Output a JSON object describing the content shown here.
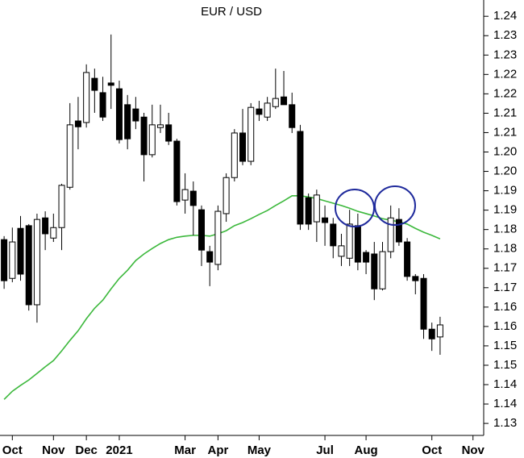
{
  "chart_data": {
    "type": "candlestick",
    "title": "EUR / USD",
    "x": [
      0,
      1,
      2,
      3,
      4,
      5,
      6,
      7,
      8,
      9,
      10,
      11,
      12,
      13,
      14,
      15,
      16,
      17,
      18,
      19,
      20,
      21,
      22,
      23,
      24,
      25,
      26,
      27,
      28,
      29,
      30,
      31,
      32,
      33,
      34,
      35,
      36,
      37,
      38,
      39,
      40,
      41,
      42,
      43,
      44,
      45,
      46,
      47,
      48,
      49,
      50,
      51,
      52,
      53
    ],
    "open": [
      1.1824,
      1.1724,
      1.1853,
      1.186,
      1.1656,
      1.188,
      1.1828,
      1.1855,
      1.1959,
      1.213,
      1.2126,
      1.224,
      1.2203,
      1.2228,
      1.2213,
      1.2172,
      1.2161,
      1.214,
      1.2043,
      1.2113,
      1.212,
      1.2078,
      1.1926,
      1.1949,
      1.1901,
      1.1793,
      1.176,
      1.1891,
      1.1984,
      1.2099,
      1.2026,
      1.2161,
      1.214,
      1.2167,
      1.2192,
      1.2172,
      1.2103,
      1.1932,
      1.187,
      1.188,
      1.1864,
      1.1781,
      1.1776,
      1.186,
      1.1791,
      1.1787,
      1.1697,
      1.1793,
      1.1876,
      1.1818,
      1.1729,
      1.1724,
      1.1593,
      1.1573
    ],
    "high": [
      1.1833,
      1.1855,
      1.1885,
      1.1864,
      1.1891,
      1.1897,
      1.1891,
      1.1968,
      1.2176,
      1.2192,
      1.2276,
      1.2265,
      1.2244,
      1.2353,
      1.2234,
      1.2197,
      1.2192,
      1.2151,
      1.2172,
      1.2172,
      1.2151,
      1.2084,
      1.1995,
      1.1974,
      1.1912,
      1.1808,
      1.1912,
      1.1995,
      1.2109,
      1.2161,
      1.2176,
      1.2182,
      1.2192,
      1.2265,
      1.2259,
      1.2203,
      1.212,
      1.1943,
      1.1953,
      1.1912,
      1.188,
      1.1839,
      1.1901,
      1.1891,
      1.1797,
      1.1818,
      1.1818,
      1.1912,
      1.1905,
      1.1828,
      1.1735,
      1.1735,
      1.161,
      1.1625
    ],
    "low": [
      1.1697,
      1.1714,
      1.1718,
      1.1641,
      1.161,
      1.1797,
      1.1818,
      1.1797,
      1.1953,
      1.2057,
      1.2113,
      1.2151,
      1.213,
      1.2161,
      1.2072,
      1.2057,
      1.2109,
      1.1974,
      1.2036,
      1.2099,
      1.2068,
      1.1912,
      1.1891,
      1.1835,
      1.1756,
      1.1704,
      1.1745,
      1.187,
      1.1974,
      1.2016,
      1.2016,
      1.213,
      1.213,
      1.2161,
      1.2172,
      1.2099,
      1.1849,
      1.1849,
      1.1818,
      1.1808,
      1.1776,
      1.1756,
      1.1756,
      1.1745,
      1.1735,
      1.1668,
      1.1693,
      1.1776,
      1.1808,
      1.1718,
      1.1683,
      1.1568,
      1.1537,
      1.1527
    ],
    "close": [
      1.1718,
      1.1818,
      1.1735,
      1.1656,
      1.1876,
      1.1839,
      1.1855,
      1.1964,
      1.212,
      1.2115,
      1.2255,
      1.2209,
      1.214,
      1.2222,
      1.2082,
      1.2084,
      1.213,
      1.2043,
      1.212,
      1.212,
      1.2078,
      1.1922,
      1.1953,
      1.1912,
      1.1797,
      1.1766,
      1.1897,
      1.1984,
      1.2099,
      1.2026,
      1.2165,
      1.2147,
      1.2176,
      1.2188,
      1.2172,
      1.2113,
      1.1864,
      1.1864,
      1.1939,
      1.1868,
      1.1808,
      1.1808,
      1.1864,
      1.1766,
      1.1766,
      1.1697,
      1.1793,
      1.188,
      1.1818,
      1.1729,
      1.1718,
      1.1593,
      1.1568,
      1.1604
    ],
    "up_color": "#ffffff",
    "down_color": "#000000",
    "line": {
      "color": "#3cb83c",
      "values": [
        1.1412,
        1.1433,
        1.1448,
        1.1462,
        1.1479,
        1.1496,
        1.1512,
        1.1537,
        1.1564,
        1.1589,
        1.162,
        1.1647,
        1.1668,
        1.1697,
        1.1724,
        1.1745,
        1.177,
        1.1787,
        1.1801,
        1.1814,
        1.1824,
        1.183,
        1.1833,
        1.1835,
        1.1835,
        1.1833,
        1.1839,
        1.1847,
        1.186,
        1.1868,
        1.1878,
        1.1889,
        1.1899,
        1.1912,
        1.1924,
        1.1937,
        1.1937,
        1.1934,
        1.193,
        1.1924,
        1.1918,
        1.1912,
        1.1905,
        1.1897,
        1.1891,
        1.1885,
        1.1878,
        1.1874,
        1.187,
        1.1864,
        1.1853,
        1.1843,
        1.1835,
        1.1826
      ]
    },
    "xlim": [
      -0.5,
      58.3
    ],
    "xticks": [
      {
        "value": 1,
        "label": "Oct"
      },
      {
        "value": 6,
        "label": "Nov"
      },
      {
        "value": 10,
        "label": "Dec"
      },
      {
        "value": 14,
        "label": "2021"
      },
      {
        "value": 22,
        "label": "Mar"
      },
      {
        "value": 26,
        "label": "Apr"
      },
      {
        "value": 31,
        "label": "May"
      },
      {
        "value": 39,
        "label": "Jul"
      },
      {
        "value": 44,
        "label": "Aug"
      },
      {
        "value": 52,
        "label": "Oct"
      },
      {
        "value": 57,
        "label": "Nov"
      }
    ],
    "ylim": [
      1.1319,
      1.2442
    ],
    "yticks": [
      {
        "value": 1.135,
        "label": "1.13"
      },
      1.14,
      {
        "value": 1.145,
        "label": "1.14"
      },
      1.15,
      {
        "value": 1.155,
        "label": "1.15"
      },
      1.16,
      {
        "value": 1.165,
        "label": "1.16"
      },
      1.17,
      {
        "value": 1.175,
        "label": "1.17"
      },
      1.18,
      {
        "value": 1.185,
        "label": "1.18"
      },
      1.19,
      {
        "value": 1.195,
        "label": "1.19"
      },
      {
        "value": 1.2,
        "label": "1.20"
      },
      {
        "value": 1.205,
        "label": "1.20"
      },
      1.21,
      {
        "value": 1.215,
        "label": "1.21"
      },
      1.22,
      {
        "value": 1.225,
        "label": "1.22"
      },
      1.23,
      {
        "value": 1.235,
        "label": "1.23"
      },
      1.24
    ]
  }
}
